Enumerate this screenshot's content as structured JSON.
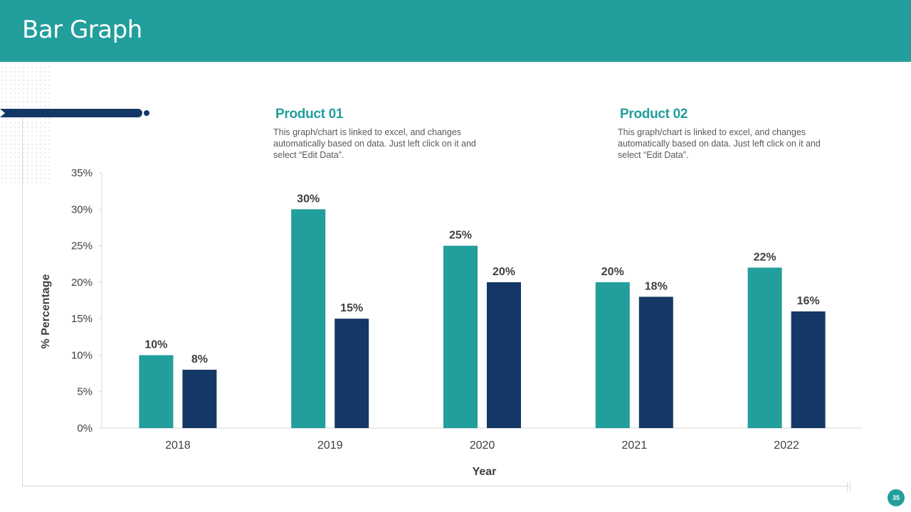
{
  "header": {
    "title": "Bar Graph"
  },
  "legend": [
    {
      "name": "Product 01",
      "description": "This graph/chart is linked to excel, and changes automatically based on data. Just left click on it and select “Edit Data”."
    },
    {
      "name": "Product 02",
      "description": "This graph/chart is linked to excel, and changes automatically based on data. Just left click on it and select “Edit Data”."
    }
  ],
  "colors": {
    "accent": "#229e9c",
    "series1": "#229e9c",
    "series2": "#143865",
    "label": "#404040"
  },
  "chart_data": {
    "type": "bar",
    "categories": [
      "2018",
      "2019",
      "2020",
      "2021",
      "2022"
    ],
    "series": [
      {
        "name": "Product 01",
        "values": [
          10,
          30,
          25,
          20,
          22
        ]
      },
      {
        "name": "Product 02",
        "values": [
          8,
          15,
          20,
          18,
          16
        ]
      }
    ],
    "ylim": [
      0,
      35
    ],
    "yticks": [
      0,
      5,
      10,
      15,
      20,
      25,
      30,
      35
    ],
    "ytick_labels": [
      "0%",
      "5%",
      "10%",
      "15%",
      "20%",
      "25%",
      "30%",
      "35%"
    ],
    "data_labels": [
      [
        "10%",
        "30%",
        "25%",
        "20%",
        "22%"
      ],
      [
        "8%",
        "15%",
        "20%",
        "18%",
        "16%"
      ]
    ],
    "xlabel": "Year",
    "ylabel": "% Percentage",
    "legend_position": "top"
  },
  "page": {
    "number": "35"
  }
}
